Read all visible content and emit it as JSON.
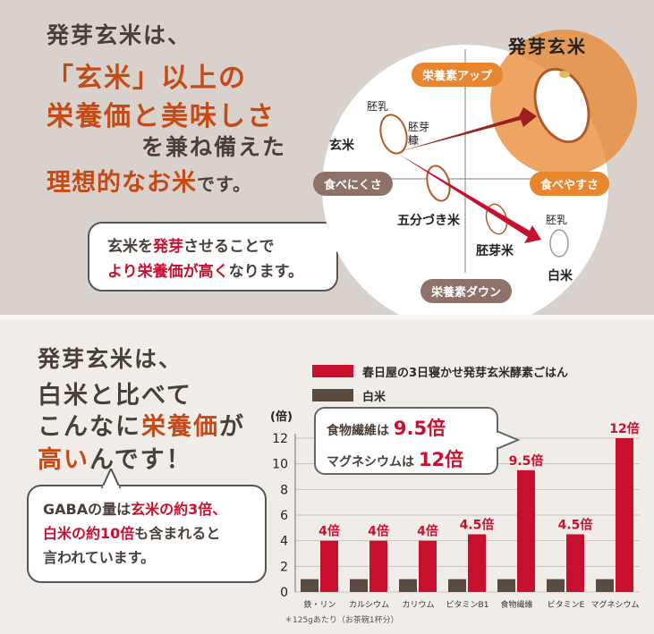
{
  "top": {
    "line1": "発芽玄米は、",
    "line2a": "「玄米」以上の",
    "line3a": "栄養価と美味しさ",
    "line4": "を兼ね備えた",
    "line5a": "理想的なお米",
    "line5b": "です。",
    "bubble_l1a": "玄米を",
    "bubble_l1b": "発芽",
    "bubble_l1c": "させることで",
    "bubble_l2a": "より栄養価が高く",
    "bubble_l2b": "なります。"
  },
  "diagram": {
    "title": "発芽玄米",
    "up": "栄養素アップ",
    "down": "栄養素ダウン",
    "hard": "食べにくさ",
    "easy": "食べやすさ",
    "genmai": "玄米",
    "haijyu1": "胚乳",
    "haiga_l1": "胚芽",
    "haiga_l2": "糠",
    "gobu": "五分づき米",
    "haigamai": "胚芽米",
    "haijyu2": "胚乳",
    "hakumai": "白米"
  },
  "bottom": {
    "line1": "発芽玄米は、",
    "line2": "白米と比べて",
    "line3a": "こんなに",
    "line3b": "栄養価",
    "line3c": "が",
    "line4a": "高い",
    "line4b": "んです！",
    "bubble_l1a": "GABAの量は",
    "bubble_l1b": "玄米の約3倍、",
    "bubble_l2a": "白米の約10倍",
    "bubble_l2b": "も含まれると",
    "bubble_l3": "言われています。"
  },
  "callout": {
    "l1a": "食物繊維は",
    "l1b": "9.5倍",
    "l2a": "マグネシウムは",
    "l2b": "12倍"
  },
  "colors": {
    "red": "#c8102e",
    "brown": "#5a4a3f",
    "orange": "#e8852f"
  },
  "chart_data": {
    "type": "bar",
    "ylabel": "(倍)",
    "ylim": [
      0,
      12
    ],
    "yticks": [
      0,
      2,
      4,
      6,
      8,
      10,
      12
    ],
    "categories": [
      "鉄・リン",
      "カルシウム",
      "カリウム",
      "ビタミンB1",
      "食物繊維",
      "ビタミンE",
      "マグネシウム"
    ],
    "series": [
      {
        "name": "春日屋の3日寝かせ発芽玄米酵素ごはん",
        "values": [
          4,
          4,
          4,
          4.5,
          9.5,
          4.5,
          12
        ]
      },
      {
        "name": "白米",
        "values": [
          1,
          1,
          1,
          1,
          1,
          1,
          1
        ]
      }
    ],
    "data_labels": [
      "4倍",
      "4倍",
      "4倍",
      "4.5倍",
      "9.5倍",
      "4.5倍",
      "12倍"
    ],
    "footnote": "＊125gあたり（お茶碗1杯分）"
  }
}
